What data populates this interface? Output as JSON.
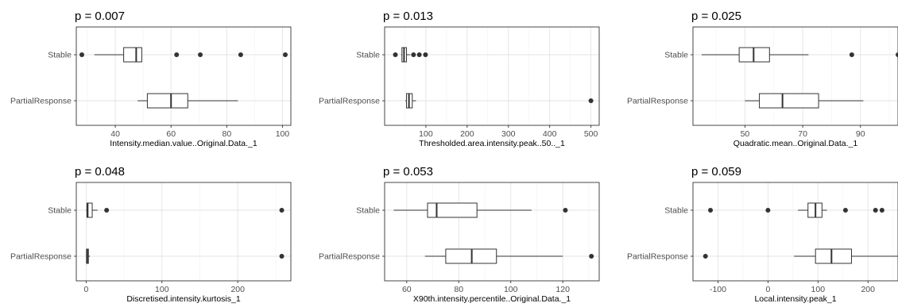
{
  "chart_data": [
    {
      "type": "boxplot",
      "title": "p = 0.007",
      "xlabel": "Intensity.median.value..Original.Data._1",
      "xlim": [
        26,
        103
      ],
      "xticks": [
        40,
        60,
        80,
        100
      ],
      "categories": [
        "Stable",
        "PartialResponse"
      ],
      "boxes": [
        {
          "name": "Stable",
          "whisker_low": 32.5,
          "q1": 43,
          "median": 47.5,
          "q3": 49.5,
          "whisker_high": 49.5,
          "outliers": [
            28,
            62,
            70.5,
            85,
            101
          ]
        },
        {
          "name": "PartialResponse",
          "whisker_low": 48,
          "q1": 51.5,
          "median": 60,
          "q3": 66,
          "whisker_high": 84,
          "outliers": []
        }
      ]
    },
    {
      "type": "boxplot",
      "title": "p = 0.013",
      "xlabel": "Thresholded.area.intensity.peak..50.._1",
      "xlim": [
        0,
        520
      ],
      "xticks": [
        100,
        200,
        300,
        400,
        500
      ],
      "categories": [
        "Stable",
        "PartialResponse"
      ],
      "boxes": [
        {
          "name": "Stable",
          "whisker_low": 40,
          "q1": 42,
          "median": 47,
          "q3": 53,
          "whisker_high": 62,
          "outliers": [
            26,
            70,
            84,
            99
          ]
        },
        {
          "name": "PartialResponse",
          "whisker_low": 50,
          "q1": 53,
          "median": 59,
          "q3": 67,
          "whisker_high": 76,
          "outliers": [
            500
          ]
        }
      ]
    },
    {
      "type": "boxplot",
      "title": "p = 0.025",
      "xlabel": "Quadratic.mean..Original.Data._1",
      "xlim": [
        32,
        103
      ],
      "xticks": [
        50,
        70,
        90
      ],
      "categories": [
        "Stable",
        "PartialResponse"
      ],
      "boxes": [
        {
          "name": "Stable",
          "whisker_low": 35,
          "q1": 48,
          "median": 53,
          "q3": 58.5,
          "whisker_high": 72,
          "outliers": [
            87,
            103
          ]
        },
        {
          "name": "PartialResponse",
          "whisker_low": 50,
          "q1": 55,
          "median": 63,
          "q3": 75.5,
          "whisker_high": 91,
          "outliers": []
        }
      ]
    },
    {
      "type": "boxplot",
      "title": "p = 0.048",
      "xlabel": "Discretised.intensity.kurtosis_1",
      "xlim": [
        -13,
        270
      ],
      "xticks": [
        0,
        100,
        200
      ],
      "categories": [
        "Stable",
        "PartialResponse"
      ],
      "boxes": [
        {
          "name": "Stable",
          "whisker_low": 0,
          "q1": 1,
          "median": 2,
          "q3": 8,
          "whisker_high": 15,
          "outliers": [
            27,
            258
          ]
        },
        {
          "name": "PartialResponse",
          "whisker_low": 0,
          "q1": 0.5,
          "median": 1.5,
          "q3": 3,
          "whisker_high": 5,
          "outliers": [
            258
          ]
        }
      ]
    },
    {
      "type": "boxplot",
      "title": "p = 0.053",
      "xlabel": "X90th.intensity.percentile..Original.Data._1",
      "xlim": [
        51.5,
        134
      ],
      "xticks": [
        60,
        80,
        100,
        120
      ],
      "categories": [
        "Stable",
        "PartialResponse"
      ],
      "boxes": [
        {
          "name": "Stable",
          "whisker_low": 55,
          "q1": 68,
          "median": 71.5,
          "q3": 87,
          "whisker_high": 108,
          "outliers": [
            121
          ]
        },
        {
          "name": "PartialResponse",
          "whisker_low": 67,
          "q1": 75,
          "median": 85,
          "q3": 94.5,
          "whisker_high": 120,
          "outliers": [
            131
          ]
        }
      ]
    },
    {
      "type": "boxplot",
      "title": "p = 0.059",
      "xlabel": "Local.intensity.peak_1",
      "xlim": [
        -150,
        260
      ],
      "xticks": [
        -100,
        0,
        100,
        200
      ],
      "categories": [
        "Stable",
        "PartialResponse"
      ],
      "boxes": [
        {
          "name": "Stable",
          "whisker_low": 60,
          "q1": 80,
          "median": 95,
          "q3": 108,
          "whisker_high": 118,
          "outliers": [
            -115,
            0,
            155,
            215,
            228
          ]
        },
        {
          "name": "PartialResponse",
          "whisker_low": 52,
          "q1": 95,
          "median": 127,
          "q3": 167,
          "whisker_high": 260,
          "outliers": [
            -125
          ]
        }
      ]
    }
  ]
}
